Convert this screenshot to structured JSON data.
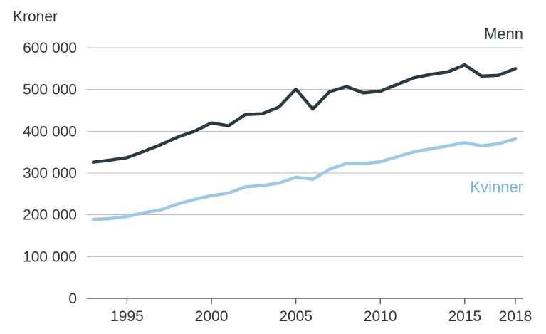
{
  "chart_data": {
    "type": "line",
    "title": "",
    "ylabel": "Kroner",
    "xlabel": "",
    "ylim": [
      0,
      600000
    ],
    "xlim": [
      1993,
      2018
    ],
    "y_ticks": [
      0,
      100000,
      200000,
      300000,
      400000,
      500000,
      600000
    ],
    "y_tick_labels": [
      "0",
      "100 000",
      "200 000",
      "300 000",
      "400 000",
      "500 000",
      "600 000"
    ],
    "x_ticks": [
      1995,
      2000,
      2005,
      2010,
      2015,
      2018
    ],
    "x_tick_labels": [
      "1995",
      "2000",
      "2005",
      "2010",
      "2015",
      "2018"
    ],
    "grid": "horizontal",
    "x": [
      1993,
      1994,
      1995,
      1996,
      1997,
      1998,
      1999,
      2000,
      2001,
      2002,
      2003,
      2004,
      2005,
      2006,
      2007,
      2008,
      2009,
      2010,
      2011,
      2012,
      2013,
      2014,
      2015,
      2016,
      2017,
      2018
    ],
    "series": [
      {
        "name": "Menn",
        "color": "#2b3a3f",
        "values": [
          326000,
          331000,
          337000,
          352000,
          368000,
          386000,
          400000,
          420000,
          413000,
          440000,
          442000,
          458000,
          501000,
          453000,
          495000,
          507000,
          492000,
          496000,
          512000,
          528000,
          536000,
          542000,
          559000,
          532000,
          534000,
          550000
        ]
      },
      {
        "name": "Kvinner",
        "color": "#9dc8e6",
        "values": [
          189000,
          191000,
          196000,
          205000,
          212000,
          226000,
          237000,
          246000,
          252000,
          267000,
          270000,
          276000,
          290000,
          285000,
          309000,
          323000,
          323000,
          327000,
          339000,
          351000,
          358000,
          365000,
          373000,
          365000,
          370000,
          382000
        ]
      }
    ]
  }
}
